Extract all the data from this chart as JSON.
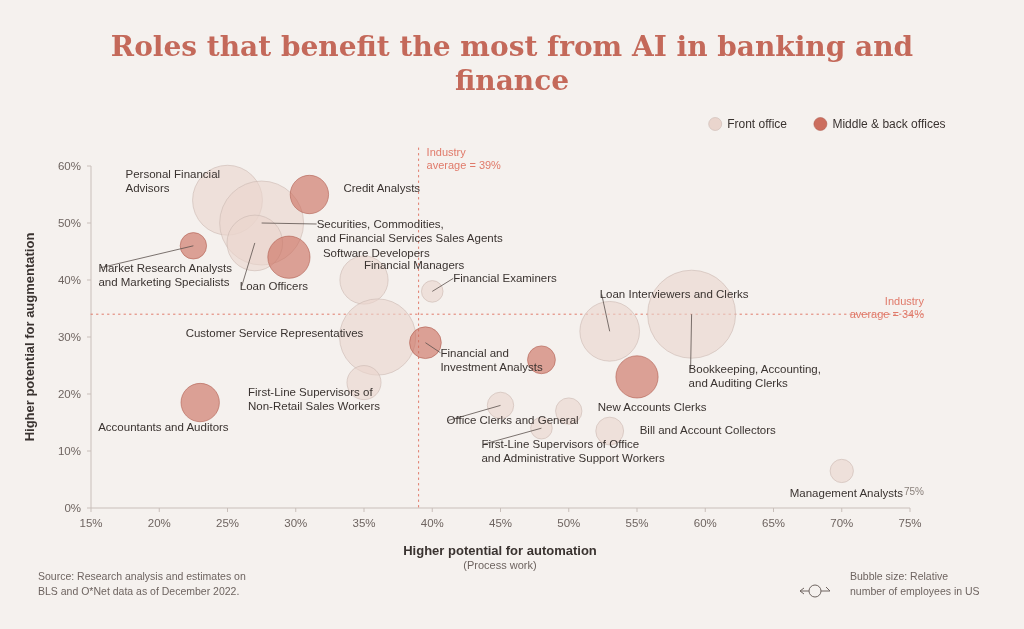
{
  "chart_data": {
    "type": "bubble",
    "title": "Roles that benefit the most from AI in banking and finance",
    "xlabel": "Higher potential for automation",
    "ylabel": "Higher potential for augmentation",
    "xlim": [
      15,
      75
    ],
    "ylim": [
      0,
      60
    ],
    "xticks": [
      {
        "value": 15,
        "label": "15%"
      },
      {
        "value": 20,
        "label": "20%"
      },
      {
        "value": 25,
        "label": "25%"
      },
      {
        "value": 30,
        "label": "30%"
      },
      {
        "value": 35,
        "label": "35%"
      },
      {
        "value": 40,
        "label": "40%"
      },
      {
        "value": 45,
        "label": "45%"
      },
      {
        "value": 50,
        "label": "50%"
      },
      {
        "value": 55,
        "label": "55%"
      },
      {
        "value": 60,
        "label": "60%"
      },
      {
        "value": 65,
        "label": "65%"
      },
      {
        "value": 70,
        "label": "70%"
      },
      {
        "value": 75,
        "label": "75%"
      }
    ],
    "yticks": [
      {
        "value": 0,
        "label": "0%"
      },
      {
        "value": 10,
        "label": "10%"
      },
      {
        "value": 20,
        "label": "20%"
      },
      {
        "value": 30,
        "label": "30%"
      },
      {
        "value": 40,
        "label": "40%"
      },
      {
        "value": 50,
        "label": "50%"
      },
      {
        "value": 60,
        "label": "60%"
      }
    ],
    "grid": false,
    "legend": "top right",
    "series": [
      {
        "name": "Front office",
        "color": "#ead5cd",
        "x": [
          25,
          27.5,
          27,
          35,
          40,
          36,
          35,
          45,
          50,
          48,
          53,
          53,
          59,
          70
        ],
        "values": [
          54,
          50,
          46.5,
          40,
          38,
          30,
          22,
          18,
          17,
          14,
          13.5,
          31,
          34,
          6.5
        ],
        "sizes": [
          0.63,
          0.91,
          0.4,
          0.3,
          0.06,
          0.75,
          0.15,
          0.09,
          0.09,
          0.06,
          0.1,
          0.46,
          1,
          0.07
        ]
      },
      {
        "name": "Middle & back offices",
        "color": "#cc6e5e",
        "x": [
          31,
          29.5,
          22.5,
          39.5,
          48,
          23,
          55
        ],
        "values": [
          55,
          44,
          46,
          29,
          26,
          18.5,
          23
        ],
        "sizes": [
          0.19,
          0.23,
          0.09,
          0.13,
          0.1,
          0.19,
          0.23
        ]
      }
    ],
    "ref_lines": [
      {
        "axis": "x",
        "value": 39,
        "label": "Industry\naverage = 39%",
        "color": "#e07a6a",
        "line_style": "dotted"
      },
      {
        "axis": "y",
        "value": 34,
        "label": "Industry\naverage = 34%",
        "color": "#e07a6a",
        "line_style": "dotted"
      }
    ],
    "annotations": [
      {
        "text": "Personal Financial\nAdvisors",
        "x": 25,
        "y": 54
      },
      {
        "text": "Credit Analysts",
        "x": 31,
        "y": 55
      },
      {
        "text": "Securities, Commodities,\nand Financial Services Sales Agents",
        "x": 27.5,
        "y": 50
      },
      {
        "text": "Software Developers",
        "x": 29.5,
        "y": 44
      },
      {
        "text": "Market Research Analysts\nand Marketing Specialists",
        "x": 22.5,
        "y": 46
      },
      {
        "text": "Loan Officers",
        "x": 27,
        "y": 46.5
      },
      {
        "text": "Financial Managers",
        "x": 35,
        "y": 40
      },
      {
        "text": "Financial Examiners",
        "x": 40,
        "y": 38
      },
      {
        "text": "Customer Service Representatives",
        "x": 36,
        "y": 30
      },
      {
        "text": "Financial and\nInvestment Analysts",
        "x": 39.5,
        "y": 29
      },
      {
        "text": "First-Line Supervisors of\nNon-Retail Sales Workers",
        "x": 35,
        "y": 22
      },
      {
        "text": "Accountants and Auditors",
        "x": 23,
        "y": 18.5
      },
      {
        "text": "Office Clerks and General",
        "x": 45,
        "y": 18
      },
      {
        "text": "First-Line Supervisors of Office\nand Administrative Support Workers",
        "x": 48,
        "y": 14
      },
      {
        "text": "New Accounts Clerks",
        "x": 50,
        "y": 17
      },
      {
        "text": "Bill and Account Collectors",
        "x": 53,
        "y": 13.5
      },
      {
        "text": "Loan Interviewers and Clerks",
        "x": 53,
        "y": 31
      },
      {
        "text": "Bookkeeping, Accounting,\nand Auditing Clerks",
        "x": 59,
        "y": 34
      },
      {
        "text": "Management Analysts",
        "x": 70,
        "y": 6.5
      },
      "75%",
      "(Process work)",
      "Source: Research analysis and estimates on\nBLS and O*Net data as of December 2022.",
      "Bubble size: Relative\nnumber of employees in US"
    ]
  }
}
